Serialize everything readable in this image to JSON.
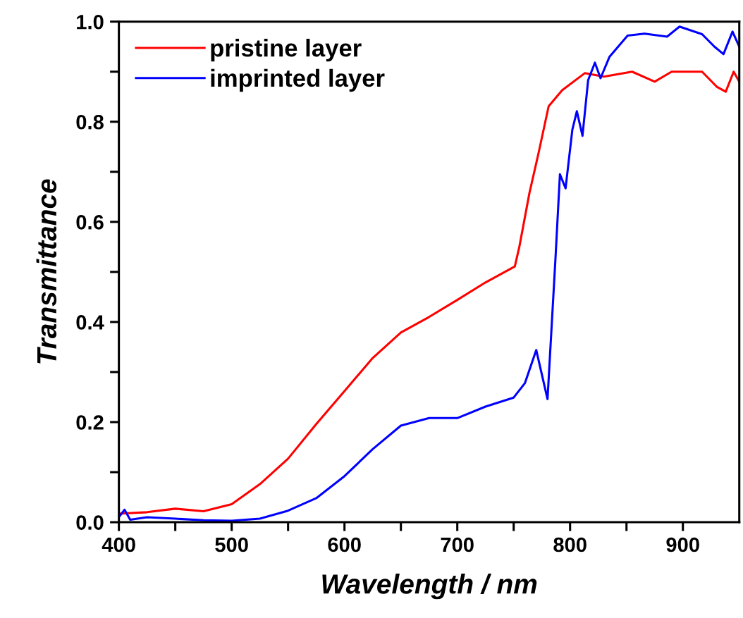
{
  "chart_data": {
    "type": "line",
    "xlabel": "Wavelength / nm",
    "ylabel": "Transmittance",
    "xlim": [
      400,
      950
    ],
    "ylim": [
      0,
      1.0
    ],
    "xticks": [
      400,
      {
        "value": 450,
        "label": null
      },
      500,
      {
        "value": 550,
        "label": null
      },
      600,
      {
        "value": 650,
        "label": null
      },
      700,
      {
        "value": 750,
        "label": null
      },
      800,
      {
        "value": 850,
        "label": null
      },
      900
    ],
    "yticks": [
      {
        "value": 0,
        "label": "0.0"
      },
      {
        "value": 0.1,
        "label": null
      },
      0.2,
      {
        "value": 0.3,
        "label": null
      },
      0.4,
      {
        "value": 0.5,
        "label": null
      },
      0.6,
      {
        "value": 0.7,
        "label": null
      },
      0.8,
      {
        "value": 0.9,
        "label": null
      },
      {
        "value": 1.0,
        "label": "1.0"
      }
    ],
    "legend": "top left",
    "grid": false,
    "marker": "none",
    "line_style": "solid",
    "series": [
      {
        "name": "pristine layer",
        "color": "#ff0000",
        "x": [
          400,
          425,
          450,
          475,
          500,
          525,
          550,
          575,
          600,
          625,
          650,
          675,
          700,
          725,
          751,
          755,
          764,
          772,
          781,
          793,
          813,
          830,
          855,
          875,
          890,
          900,
          917,
          930,
          938,
          945,
          950
        ],
        "values": [
          0.017,
          0.02,
          0.027,
          0.022,
          0.036,
          0.076,
          0.127,
          0.196,
          0.262,
          0.328,
          0.379,
          0.41,
          0.444,
          0.479,
          0.511,
          0.55,
          0.658,
          0.737,
          0.831,
          0.863,
          0.897,
          0.89,
          0.9,
          0.88,
          0.9,
          0.9,
          0.9,
          0.87,
          0.86,
          0.9,
          0.88
        ]
      },
      {
        "name": "imprinted layer",
        "color": "#0000ff",
        "x": [
          400,
          405,
          410,
          425,
          450,
          475,
          500,
          525,
          550,
          575,
          600,
          625,
          650,
          675,
          700,
          725,
          750,
          760,
          770,
          780,
          787,
          791,
          796,
          802,
          806,
          811,
          816,
          822,
          827,
          835,
          851,
          866,
          886,
          897,
          917,
          928,
          936,
          944,
          950
        ],
        "values": [
          0.01,
          0.025,
          0.005,
          0.01,
          0.007,
          0.004,
          0.003,
          0.007,
          0.023,
          0.048,
          0.092,
          0.146,
          0.193,
          0.208,
          0.208,
          0.231,
          0.249,
          0.278,
          0.344,
          0.246,
          0.525,
          0.695,
          0.667,
          0.784,
          0.821,
          0.772,
          0.883,
          0.918,
          0.887,
          0.93,
          0.972,
          0.976,
          0.97,
          0.99,
          0.975,
          0.95,
          0.935,
          0.98,
          0.95
        ]
      }
    ]
  }
}
